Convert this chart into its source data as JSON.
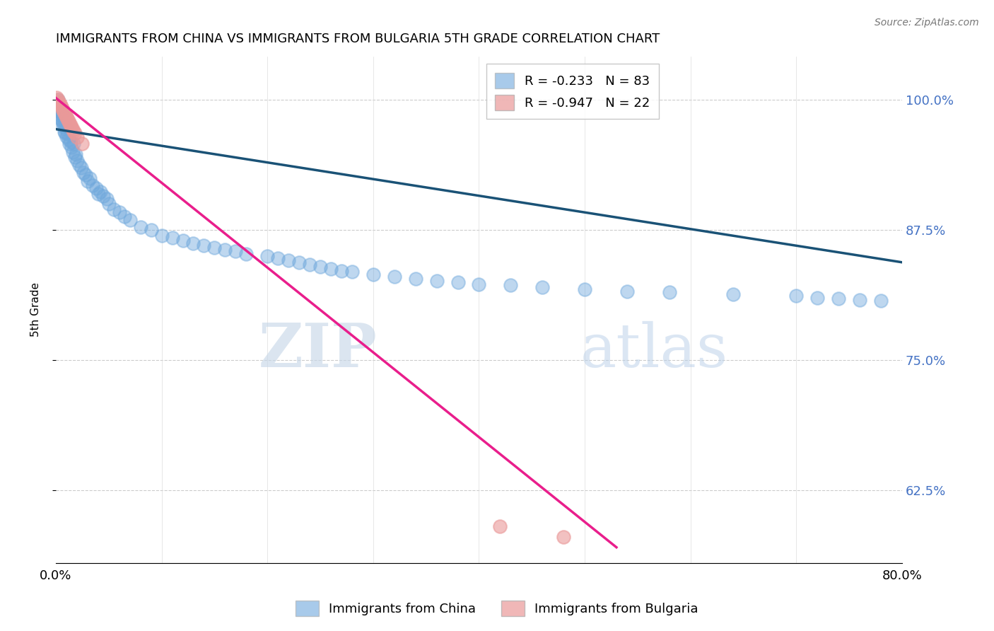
{
  "title": "IMMIGRANTS FROM CHINA VS IMMIGRANTS FROM BULGARIA 5TH GRADE CORRELATION CHART",
  "source": "Source: ZipAtlas.com",
  "ylabel": "5th Grade",
  "y_tick_values": [
    0.625,
    0.75,
    0.875,
    1.0
  ],
  "x_min": 0.0,
  "x_max": 0.8,
  "y_min": 0.555,
  "y_max": 1.042,
  "legend_china": "R = -0.233   N = 83",
  "legend_bulgaria": "R = -0.947   N = 22",
  "china_color": "#6fa8dc",
  "bulgaria_color": "#ea9999",
  "china_line_color": "#1a5276",
  "bulgaria_line_color": "#e91e8c",
  "watermark": "ZIPatlas",
  "legend_label_china": "Immigrants from China",
  "legend_label_bulgaria": "Immigrants from Bulgaria",
  "china_scatter_x": [
    0.001,
    0.002,
    0.002,
    0.003,
    0.003,
    0.004,
    0.004,
    0.005,
    0.005,
    0.006,
    0.006,
    0.007,
    0.007,
    0.008,
    0.008,
    0.009,
    0.009,
    0.01,
    0.01,
    0.011,
    0.012,
    0.013,
    0.014,
    0.015,
    0.016,
    0.017,
    0.018,
    0.019,
    0.02,
    0.022,
    0.024,
    0.026,
    0.028,
    0.03,
    0.032,
    0.035,
    0.038,
    0.04,
    0.042,
    0.045,
    0.048,
    0.05,
    0.055,
    0.06,
    0.065,
    0.07,
    0.08,
    0.09,
    0.1,
    0.11,
    0.12,
    0.13,
    0.14,
    0.15,
    0.16,
    0.17,
    0.18,
    0.2,
    0.21,
    0.22,
    0.23,
    0.24,
    0.25,
    0.26,
    0.27,
    0.28,
    0.3,
    0.32,
    0.34,
    0.36,
    0.38,
    0.4,
    0.43,
    0.46,
    0.5,
    0.54,
    0.58,
    0.64,
    0.7,
    0.72,
    0.74,
    0.76,
    0.78
  ],
  "china_scatter_y": [
    0.99,
    1.0,
    0.995,
    0.998,
    0.992,
    0.99,
    0.985,
    0.988,
    0.982,
    0.985,
    0.98,
    0.978,
    0.975,
    0.98,
    0.97,
    0.975,
    0.968,
    0.972,
    0.965,
    0.968,
    0.962,
    0.958,
    0.96,
    0.955,
    0.95,
    0.958,
    0.945,
    0.948,
    0.942,
    0.938,
    0.935,
    0.93,
    0.928,
    0.922,
    0.925,
    0.918,
    0.915,
    0.91,
    0.912,
    0.908,
    0.905,
    0.9,
    0.895,
    0.892,
    0.888,
    0.885,
    0.878,
    0.875,
    0.87,
    0.868,
    0.865,
    0.862,
    0.86,
    0.858,
    0.856,
    0.855,
    0.852,
    0.85,
    0.848,
    0.846,
    0.844,
    0.842,
    0.84,
    0.838,
    0.836,
    0.835,
    0.832,
    0.83,
    0.828,
    0.826,
    0.825,
    0.823,
    0.822,
    0.82,
    0.818,
    0.816,
    0.815,
    0.813,
    0.812,
    0.81,
    0.809,
    0.808,
    0.807
  ],
  "bulgaria_scatter_x": [
    0.001,
    0.002,
    0.003,
    0.004,
    0.005,
    0.006,
    0.007,
    0.008,
    0.009,
    0.01,
    0.011,
    0.012,
    0.013,
    0.014,
    0.015,
    0.016,
    0.017,
    0.018,
    0.02,
    0.025,
    0.42,
    0.48
  ],
  "bulgaria_scatter_y": [
    1.002,
    1.0,
    0.998,
    0.996,
    0.995,
    0.992,
    0.99,
    0.988,
    0.986,
    0.984,
    0.982,
    0.98,
    0.978,
    0.976,
    0.974,
    0.972,
    0.97,
    0.968,
    0.964,
    0.958,
    0.59,
    0.58
  ],
  "china_line_x": [
    0.0,
    0.8
  ],
  "china_line_y": [
    0.972,
    0.844
  ],
  "bulgaria_line_x": [
    0.0,
    0.53
  ],
  "bulgaria_line_y": [
    1.002,
    0.57
  ]
}
